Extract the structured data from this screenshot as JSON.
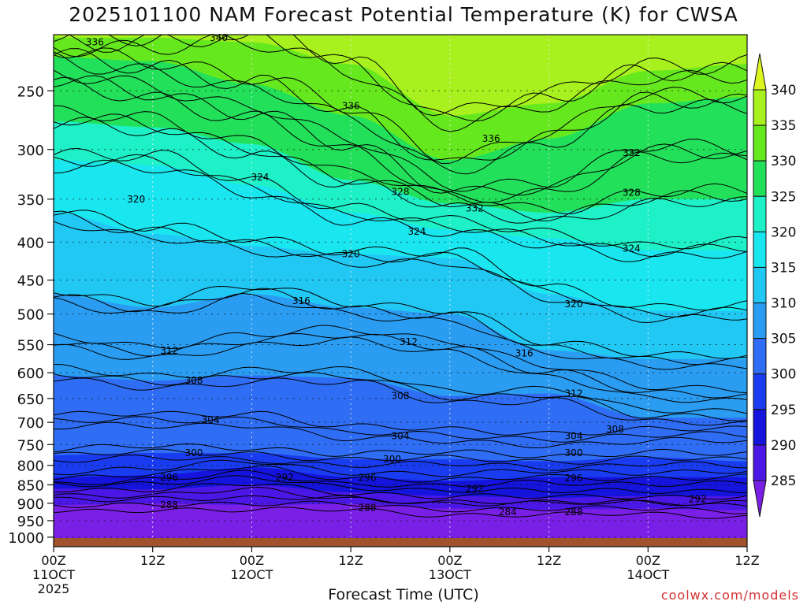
{
  "chart_data": {
    "type": "heatmap",
    "title": "2025101100 NAM Forecast Potential Temperature (K) for CWSA",
    "xlabel": "Forecast Time (UTC)",
    "ylabel": "",
    "credit": "coolwx.com/models",
    "y_axis": {
      "scale": "log-pressure",
      "ticks": [
        250,
        300,
        350,
        400,
        450,
        500,
        550,
        600,
        650,
        700,
        750,
        800,
        850,
        900,
        950,
        1000
      ],
      "range": [
        1030,
        210
      ]
    },
    "x_axis": {
      "range_hours": [
        0,
        84
      ],
      "ticks": [
        {
          "hour": 0,
          "label": "00Z",
          "sub": "11OCT",
          "sub2": "2025"
        },
        {
          "hour": 12,
          "label": "12Z",
          "sub": "",
          "sub2": ""
        },
        {
          "hour": 24,
          "label": "00Z",
          "sub": "12OCT",
          "sub2": ""
        },
        {
          "hour": 36,
          "label": "12Z",
          "sub": "",
          "sub2": ""
        },
        {
          "hour": 48,
          "label": "00Z",
          "sub": "13OCT",
          "sub2": ""
        },
        {
          "hour": 60,
          "label": "12Z",
          "sub": "",
          "sub2": ""
        },
        {
          "hour": 72,
          "label": "00Z",
          "sub": "14OCT",
          "sub2": ""
        },
        {
          "hour": 84,
          "label": "12Z",
          "sub": "",
          "sub2": ""
        }
      ]
    },
    "grid": true,
    "colorbar": {
      "levels": [
        285,
        290,
        295,
        300,
        305,
        310,
        315,
        320,
        325,
        330,
        335,
        340
      ],
      "colors": [
        "#7a1fe6",
        "#4b17e6",
        "#1414dc",
        "#1a3cf0",
        "#2f6df4",
        "#2a9cf2",
        "#22c8f4",
        "#1ae6f0",
        "#1ef0c8",
        "#23e05a",
        "#66e81e",
        "#a8f01e",
        "#dcf51e"
      ]
    },
    "isentrope_profiles": {
      "hours": [
        0,
        12,
        24,
        36,
        48,
        60,
        72,
        84
      ],
      "levels_K": [
        288,
        292,
        296,
        300,
        304,
        308,
        312,
        316,
        320,
        324,
        328,
        332,
        336,
        340
      ],
      "pressure_hPa": {
        "288": [
          905,
          900,
          905,
          902,
          915,
          918,
          915,
          920
        ],
        "292": [
          860,
          862,
          850,
          870,
          880,
          885,
          880,
          880
        ],
        "296": [
          830,
          825,
          805,
          830,
          840,
          830,
          830,
          830
        ],
        "300": [
          775,
          770,
          770,
          785,
          785,
          790,
          780,
          790
        ],
        "304": [
          700,
          695,
          690,
          725,
          730,
          735,
          730,
          730
        ],
        "308": [
          605,
          615,
          605,
          610,
          645,
          640,
          690,
          690
        ],
        "312": [
          545,
          560,
          545,
          535,
          550,
          600,
          640,
          640
        ],
        "316": [
          470,
          490,
          470,
          490,
          500,
          560,
          575,
          575
        ],
        "320": [
          365,
          390,
          405,
          415,
          420,
          470,
          495,
          495
        ],
        "324": [
          310,
          315,
          335,
          365,
          385,
          395,
          410,
          410
        ],
        "328": [
          275,
          280,
          295,
          330,
          355,
          365,
          350,
          350
        ],
        "332": [
          245,
          250,
          265,
          300,
          340,
          335,
          305,
          305
        ],
        "336": [
          225,
          228,
          245,
          270,
          310,
          290,
          260,
          255
        ],
        "340": [
          212,
          212,
          215,
          230,
          270,
          260,
          235,
          230
        ]
      }
    },
    "contour_labels": [
      {
        "value": "336",
        "hour": 5,
        "p": 215
      },
      {
        "value": "340",
        "hour": 20,
        "p": 212
      },
      {
        "value": "336",
        "hour": 36,
        "p": 262
      },
      {
        "value": "336",
        "hour": 53,
        "p": 290
      },
      {
        "value": "332",
        "hour": 70,
        "p": 303
      },
      {
        "value": "328",
        "hour": 42,
        "p": 342
      },
      {
        "value": "332",
        "hour": 51,
        "p": 360
      },
      {
        "value": "328",
        "hour": 70,
        "p": 343
      },
      {
        "value": "324",
        "hour": 25,
        "p": 327
      },
      {
        "value": "320",
        "hour": 10,
        "p": 350
      },
      {
        "value": "324",
        "hour": 44,
        "p": 387
      },
      {
        "value": "324",
        "hour": 70,
        "p": 408
      },
      {
        "value": "320",
        "hour": 36,
        "p": 415
      },
      {
        "value": "320",
        "hour": 63,
        "p": 485
      },
      {
        "value": "316",
        "hour": 30,
        "p": 480
      },
      {
        "value": "316",
        "hour": 57,
        "p": 565
      },
      {
        "value": "312",
        "hour": 14,
        "p": 560
      },
      {
        "value": "312",
        "hour": 43,
        "p": 545
      },
      {
        "value": "312",
        "hour": 63,
        "p": 640
      },
      {
        "value": "308",
        "hour": 17,
        "p": 615
      },
      {
        "value": "308",
        "hour": 42,
        "p": 645
      },
      {
        "value": "308",
        "hour": 68,
        "p": 715
      },
      {
        "value": "304",
        "hour": 19,
        "p": 695
      },
      {
        "value": "304",
        "hour": 42,
        "p": 730
      },
      {
        "value": "304",
        "hour": 63,
        "p": 730
      },
      {
        "value": "300",
        "hour": 17,
        "p": 770
      },
      {
        "value": "300",
        "hour": 41,
        "p": 785
      },
      {
        "value": "300",
        "hour": 63,
        "p": 770
      },
      {
        "value": "296",
        "hour": 14,
        "p": 830
      },
      {
        "value": "296",
        "hour": 38,
        "p": 832
      },
      {
        "value": "296",
        "hour": 63,
        "p": 833
      },
      {
        "value": "292",
        "hour": 28,
        "p": 830
      },
      {
        "value": "292",
        "hour": 51,
        "p": 860
      },
      {
        "value": "292",
        "hour": 78,
        "p": 888
      },
      {
        "value": "288",
        "hour": 14,
        "p": 905
      },
      {
        "value": "288",
        "hour": 38,
        "p": 912
      },
      {
        "value": "288",
        "hour": 63,
        "p": 925
      },
      {
        "value": "284",
        "hour": 55,
        "p": 925
      }
    ]
  }
}
